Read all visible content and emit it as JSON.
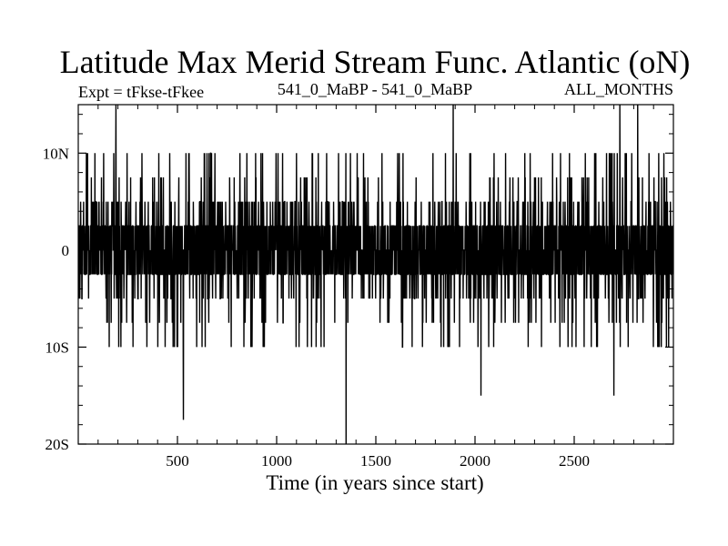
{
  "chart_data": {
    "type": "line",
    "title": "Latitude Max Merid Stream Func. Atlantic (oN)",
    "subtitle_left": "Expt = tFkse-tFkee",
    "subtitle_center": "541_0_MaBP - 541_0_MaBP",
    "subtitle_right": "ALL_MONTHS",
    "xlabel": "Time (in years since start)",
    "ylabel": "",
    "xlim": [
      0,
      3000
    ],
    "ylim": [
      -20,
      15
    ],
    "x_ticks": [
      500,
      1000,
      1500,
      2000,
      2500
    ],
    "x_tick_labels": [
      "500",
      "1000",
      "1500",
      "2000",
      "2500"
    ],
    "y_ticks": [
      10,
      0,
      -10,
      -20
    ],
    "y_tick_labels": [
      "10N",
      "0",
      "10S",
      "20S"
    ],
    "grid": false,
    "series": [
      {
        "name": "Latitude Max Merid Stream Func. Atlantic",
        "sampling": "annual, years 1-3000",
        "typical_range": [
          -5,
          7.5
        ],
        "quantization_step": 2.5,
        "color": "#000000",
        "extremes": [
          {
            "x": 190,
            "y": 15
          },
          {
            "x": 530,
            "y": -17.5
          },
          {
            "x": 1350,
            "y": -20
          },
          {
            "x": 1890,
            "y": 15
          },
          {
            "x": 2730,
            "y": 15
          },
          {
            "x": 2820,
            "y": 15
          },
          {
            "x": 2030,
            "y": -15
          },
          {
            "x": 2700,
            "y": -15
          }
        ]
      }
    ]
  }
}
